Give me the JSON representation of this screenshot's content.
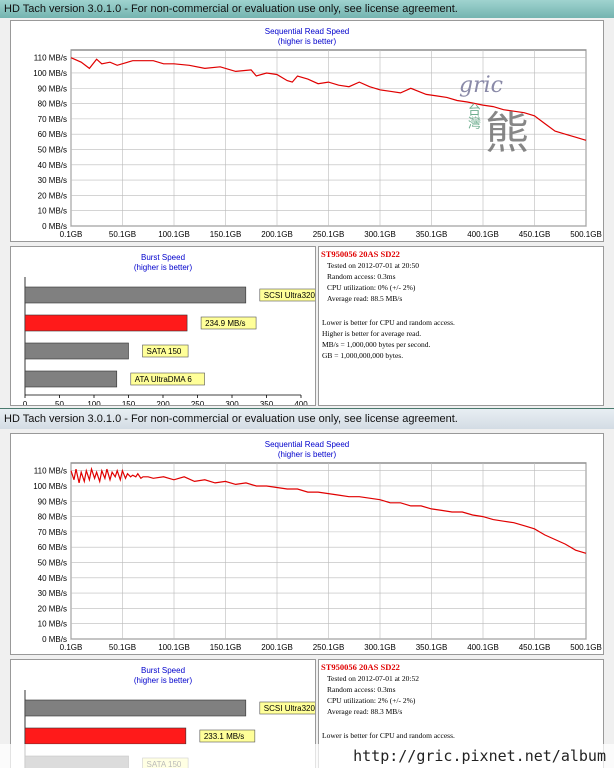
{
  "window1": {
    "title": "HD Tach version 3.0.1.0  - For non-commercial or evaluation use only, see license agreement.",
    "seq_title": "Sequential Read Speed",
    "seq_sub": "(higher is better)",
    "burst_title": "Burst Speed",
    "burst_sub": "(higher is better)",
    "info": {
      "drive": "ST950056 20AS SD22",
      "tested": "Tested on 2012-07-01 at 20:50",
      "random": "Random access: 0.3ms",
      "cpu": "CPU utilization: 0% (+/- 2%)",
      "avg": "Average read: 88.5 MB/s",
      "note1": "Lower is better for CPU and random access.",
      "note2": "Higher is better for average read.",
      "note3": "MB/s = 1,000,000 bytes per second.",
      "note4": "GB = 1,000,000,000 bytes."
    }
  },
  "window2": {
    "title": "HD Tach version 3.0.1.0  - For non-commercial or evaluation use only, see license agreement.",
    "seq_title": "Sequential Read Speed",
    "seq_sub": "(higher is better)",
    "burst_title": "Burst Speed",
    "burst_sub": "(higher is better)",
    "info": {
      "drive": "ST950056 20AS SD22",
      "tested": "Tested on 2012-07-01 at 20:52",
      "random": "Random access: 0.3ms",
      "cpu": "CPU utilization: 2% (+/- 2%)",
      "avg": "Average read: 88.3 MB/s",
      "note1": "Lower is better for CPU and random access."
    }
  },
  "logo": {
    "latin": "gric",
    "cjk_small": "台灣",
    "cjk_big": "熊"
  },
  "watermark_url": "http://gric.pixnet.net/album",
  "chart_data": [
    {
      "type": "line",
      "title": "Sequential Read Speed",
      "subtitle": "(higher is better)",
      "x_ticks": [
        "0.1GB",
        "50.1GB",
        "100.1GB",
        "150.1GB",
        "200.1GB",
        "250.1GB",
        "300.1GB",
        "350.1GB",
        "400.1GB",
        "450.1GB",
        "500.1GB"
      ],
      "y_ticks": [
        "0 MB/s",
        "10 MB/s",
        "20 MB/s",
        "30 MB/s",
        "40 MB/s",
        "50 MB/s",
        "60 MB/s",
        "70 MB/s",
        "80 MB/s",
        "90 MB/s",
        "100 MB/s",
        "110 MB/s"
      ],
      "xlim": [
        0.1,
        500.1
      ],
      "ylim": [
        0,
        115
      ],
      "grid": true,
      "color": "#e00000",
      "series": [
        {
          "x": [
            0.1,
            10,
            18,
            25,
            30,
            38,
            45,
            60,
            80,
            90,
            100,
            115,
            130,
            145,
            160,
            175,
            180,
            190,
            200,
            210,
            215,
            220,
            230,
            240,
            250,
            260,
            270,
            280,
            290,
            300,
            310,
            320,
            330,
            345,
            355,
            365,
            375,
            385,
            400,
            410,
            420,
            430,
            440,
            450,
            460,
            470,
            480,
            490,
            500.1
          ],
          "y": [
            110,
            107,
            103,
            109,
            106,
            107,
            105,
            108,
            108,
            106,
            106,
            105,
            103,
            104,
            101,
            102,
            98,
            100,
            99,
            95,
            94,
            98,
            96,
            93,
            94,
            92,
            91,
            94,
            91,
            89,
            88,
            87,
            90,
            86,
            85,
            84,
            82,
            81,
            79,
            78,
            76,
            75,
            74,
            72,
            67,
            62,
            60,
            58,
            56
          ]
        }
      ]
    },
    {
      "type": "bar",
      "title": "Burst Speed",
      "subtitle": "(higher is better)",
      "categories": [
        "SCSI Ultra320",
        "234.9 MB/s",
        "SATA 150",
        "ATA UltraDMA 6"
      ],
      "values": [
        320,
        234.9,
        150,
        133
      ],
      "colors": [
        "#808080",
        "#ff1a1a",
        "#808080",
        "#808080"
      ],
      "x_ticks": [
        "0",
        "50",
        "100",
        "150",
        "200",
        "250",
        "300",
        "350",
        "400"
      ],
      "xlim": [
        0,
        400
      ]
    },
    {
      "type": "line",
      "title": "Sequential Read Speed",
      "subtitle": "(higher is better)",
      "x_ticks": [
        "0.1GB",
        "50.1GB",
        "100.1GB",
        "150.1GB",
        "200.1GB",
        "250.1GB",
        "300.1GB",
        "350.1GB",
        "400.1GB",
        "450.1GB",
        "500.1GB"
      ],
      "y_ticks": [
        "0 MB/s",
        "10 MB/s",
        "20 MB/s",
        "30 MB/s",
        "40 MB/s",
        "50 MB/s",
        "60 MB/s",
        "70 MB/s",
        "80 MB/s",
        "90 MB/s",
        "100 MB/s",
        "110 MB/s"
      ],
      "xlim": [
        0.1,
        500.1
      ],
      "ylim": [
        0,
        115
      ],
      "grid": true,
      "color": "#e00000",
      "series": [
        {
          "x": [
            0.1,
            3,
            5,
            8,
            10,
            13,
            15,
            18,
            20,
            23,
            25,
            28,
            30,
            33,
            35,
            38,
            40,
            43,
            45,
            48,
            50,
            53,
            55,
            58,
            60,
            63,
            65,
            68,
            70,
            75,
            80,
            90,
            100,
            110,
            120,
            130,
            140,
            150,
            160,
            170,
            180,
            190,
            200,
            210,
            220,
            230,
            240,
            250,
            260,
            270,
            280,
            290,
            300,
            310,
            320,
            330,
            340,
            350,
            360,
            370,
            380,
            390,
            400,
            410,
            420,
            430,
            440,
            450,
            460,
            470,
            480,
            490,
            500.1
          ],
          "y": [
            110,
            104,
            111,
            102,
            109,
            103,
            110,
            104,
            111,
            105,
            109,
            103,
            110,
            105,
            111,
            104,
            109,
            106,
            110,
            104,
            110,
            105,
            108,
            106,
            107,
            106,
            108,
            105,
            106,
            106,
            105,
            106,
            104,
            106,
            103,
            104,
            102,
            103,
            101,
            102,
            100,
            100,
            99,
            98,
            98,
            96,
            96,
            95,
            94,
            93,
            93,
            92,
            91,
            89,
            89,
            87,
            87,
            85,
            84,
            83,
            83,
            81,
            80,
            78,
            77,
            76,
            74,
            72,
            68,
            65,
            62,
            58,
            56
          ]
        }
      ]
    },
    {
      "type": "bar",
      "title": "Burst Speed",
      "subtitle": "(higher is better)",
      "categories": [
        "SCSI Ultra320",
        "233.1 MB/s",
        "SATA 150"
      ],
      "values": [
        320,
        233.1,
        150
      ],
      "colors": [
        "#808080",
        "#ff1a1a",
        "#808080"
      ],
      "xlim": [
        0,
        400
      ]
    }
  ]
}
